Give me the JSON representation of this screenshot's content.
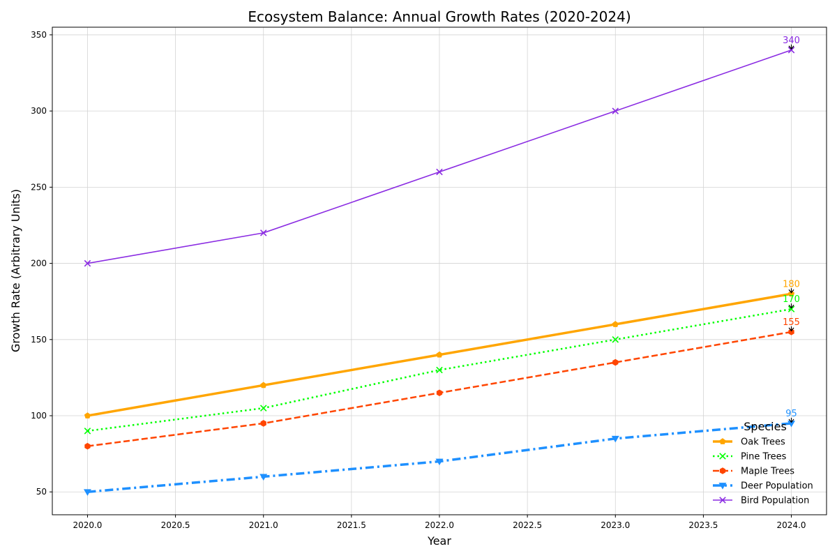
{
  "chart_data": {
    "type": "line",
    "title": "Ecosystem Balance: Annual Growth Rates (2020-2024)",
    "xlabel": "Year",
    "ylabel": "Growth Rate (Arbitrary Units)",
    "x": [
      2020,
      2021,
      2022,
      2023,
      2024
    ],
    "xlim": [
      2019.8,
      2024.2
    ],
    "ylim": [
      35,
      355
    ],
    "x_ticks": [
      2020.0,
      2020.5,
      2021.0,
      2021.5,
      2022.0,
      2022.5,
      2023.0,
      2023.5,
      2024.0
    ],
    "x_tick_labels": [
      "2020.0",
      "2020.5",
      "2021.0",
      "2021.5",
      "2022.0",
      "2022.5",
      "2023.0",
      "2023.5",
      "2024.0"
    ],
    "y_ticks": [
      50,
      100,
      150,
      200,
      250,
      300,
      350
    ],
    "y_tick_labels": [
      "50",
      "100",
      "150",
      "200",
      "250",
      "300",
      "350"
    ],
    "grid": true,
    "legend": {
      "title": "Species",
      "placement": "lower-right"
    },
    "series": [
      {
        "name": "Oak Trees",
        "values": [
          100,
          120,
          140,
          160,
          180
        ],
        "color": "#FFA500",
        "line_style": "solid",
        "marker": "pentagon",
        "end_label": "180"
      },
      {
        "name": "Pine Trees",
        "values": [
          90,
          105,
          130,
          150,
          170
        ],
        "color": "#00FF00",
        "line_style": "dotted",
        "marker": "x",
        "end_label": "170"
      },
      {
        "name": "Maple Trees",
        "values": [
          80,
          95,
          115,
          135,
          155
        ],
        "color": "#FF4500",
        "line_style": "dashed",
        "marker": "hexagon",
        "end_label": "155"
      },
      {
        "name": "Deer Population",
        "values": [
          50,
          60,
          70,
          85,
          95
        ],
        "color": "#1E90FF",
        "line_style": "dashdot",
        "marker": "triangle-down",
        "end_label": "95"
      },
      {
        "name": "Bird Population",
        "values": [
          200,
          220,
          260,
          300,
          340
        ],
        "color": "#8A2BE2",
        "line_style": "solid-thin",
        "marker": "x",
        "end_label": "340"
      }
    ]
  }
}
